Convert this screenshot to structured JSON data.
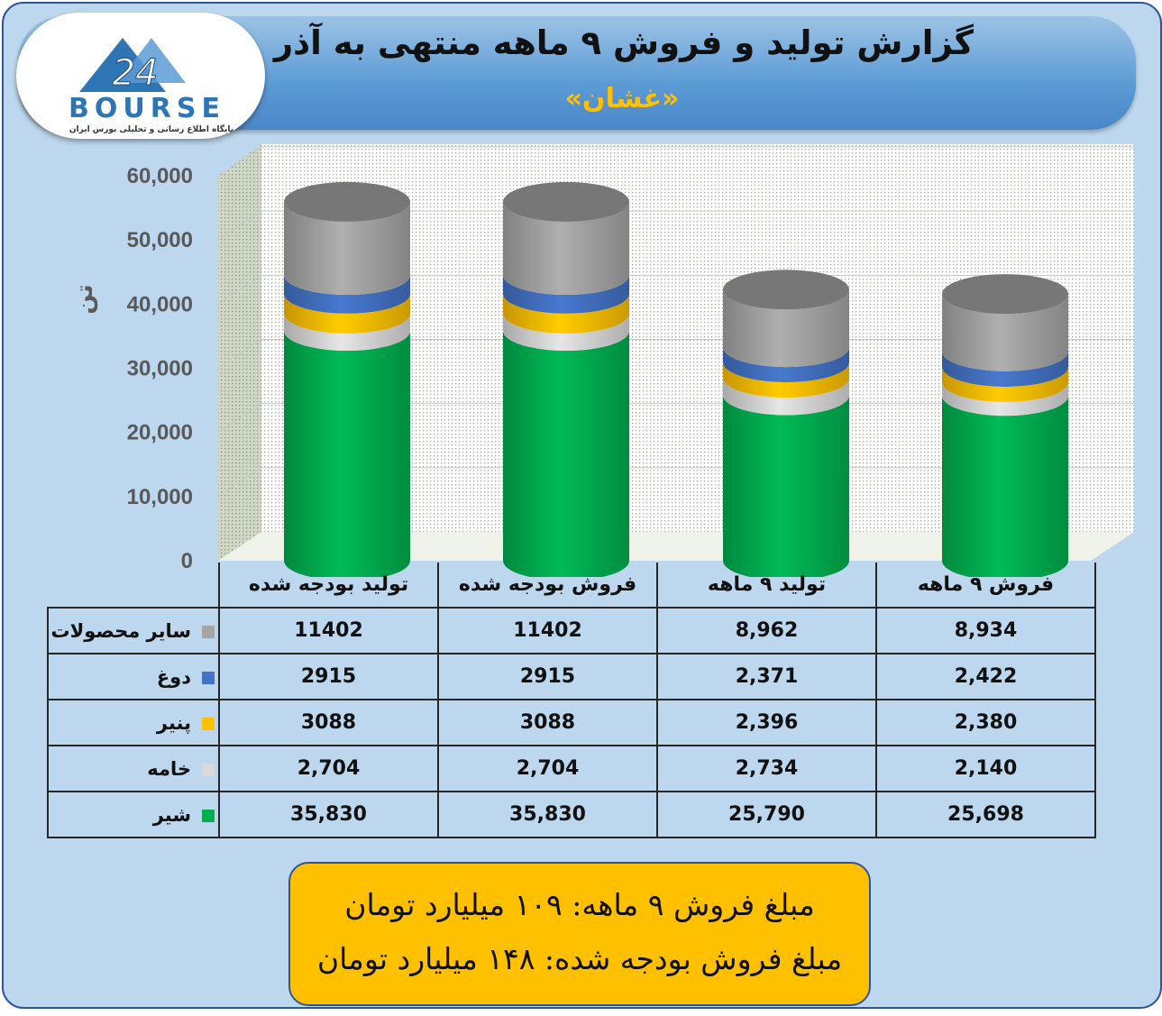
{
  "header": {
    "title": "گزارش تولید و فروش ۹ ماهه منتهی به آذر",
    "subtitle": "«غشان»"
  },
  "logo": {
    "text": "BOURSE",
    "numerals": "24",
    "tagline": "پایگاه اطلاع رسانی و تحلیلی بورس ایران"
  },
  "chart_data": {
    "type": "bar",
    "stacked": true,
    "three_d": true,
    "shape": "cylinder",
    "ylabel": "تن",
    "ylim": [
      0,
      60000
    ],
    "yticks": [
      "0",
      "10,000",
      "20,000",
      "30,000",
      "40,000",
      "50,000",
      "60,000"
    ],
    "grid": true,
    "categories": [
      "تولید بودجه شده",
      "فروش بودجه شده",
      "تولید ۹ ماهه",
      "فروش ۹ ماهه"
    ],
    "series": [
      {
        "name": "سایر محصولات",
        "color": "#a5a5a5",
        "values": [
          11402,
          11402,
          8962,
          8934
        ],
        "labels": [
          "11402",
          "11402",
          "8,962",
          "8,934"
        ]
      },
      {
        "name": "دوغ",
        "color": "#4472c4",
        "values": [
          2915,
          2915,
          2371,
          2422
        ],
        "labels": [
          "2915",
          "2915",
          "2,371",
          "2,422"
        ]
      },
      {
        "name": "پنیر",
        "color": "#ffc000",
        "values": [
          3088,
          3088,
          2396,
          2380
        ],
        "labels": [
          "3088",
          "3088",
          "2,396",
          "2,380"
        ]
      },
      {
        "name": "خامه",
        "color": "#d9d9d9",
        "values": [
          2704,
          2704,
          2734,
          2140
        ],
        "labels": [
          "2,704",
          "2,704",
          "2,734",
          "2,140"
        ]
      },
      {
        "name": "شیر",
        "color": "#00b050",
        "values": [
          35830,
          35830,
          25790,
          25698
        ],
        "labels": [
          "35,830",
          "35,830",
          "25,790",
          "25,698"
        ]
      }
    ]
  },
  "callout": {
    "line1": "مبلغ فروش ۹ ماهه: ۱۰۹ میلیارد تومان",
    "line2": "مبلغ فروش بودجه شده: ۱۴۸ میلیارد تومان"
  }
}
